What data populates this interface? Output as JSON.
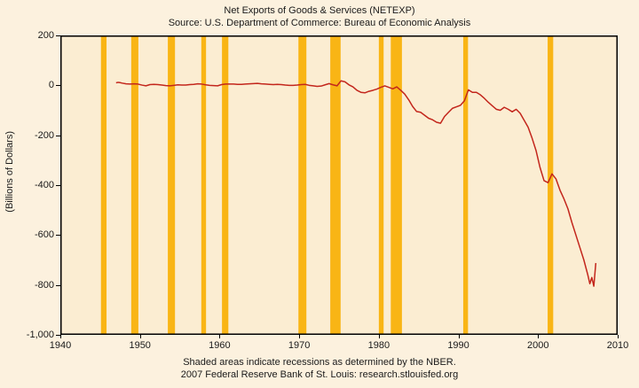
{
  "header": {
    "title": "Net Exports of Goods & Services (NETEXP)",
    "subtitle": "Source: U.S. Department of Commerce: Bureau of Economic Analysis"
  },
  "footer": {
    "line1": "Shaded areas indicate recessions as determined by the NBER.",
    "line2": "2007 Federal Reserve Bank of St. Louis: research.stlouisfed.org"
  },
  "colors": {
    "background": "#FCF1DE",
    "plot_background": "#FBEDD2",
    "recession_band": "#F9B515",
    "data_line": "#C3261C",
    "plot_border": "#000000",
    "text": "#1A1A1A"
  },
  "chart_data": {
    "type": "line",
    "title": "Net Exports of Goods & Services (NETEXP)",
    "subtitle": "Source: U.S. Department of Commerce: Bureau of Economic Analysis",
    "xlabel": "",
    "ylabel": "(Billions of Dollars)",
    "xlim": [
      1940,
      2010
    ],
    "ylim": [
      -1000,
      200
    ],
    "grid": false,
    "legend": "none",
    "x_tick_values": [
      1940,
      1950,
      1960,
      1970,
      1980,
      1990,
      2000,
      2010
    ],
    "x_tick_labels": [
      "1940",
      "1950",
      "1960",
      "1970",
      "1980",
      "1990",
      "2000",
      "2010"
    ],
    "y_tick_values": [
      200,
      0,
      -200,
      -400,
      -600,
      -800,
      -1000
    ],
    "y_tick_labels": [
      "200",
      "0",
      "-200",
      "-400",
      "-600",
      "-800",
      "-1,000"
    ],
    "recession_bands": [
      [
        1945.1,
        1945.8
      ],
      [
        1948.9,
        1949.8
      ],
      [
        1953.5,
        1954.4
      ],
      [
        1957.7,
        1958.3
      ],
      [
        1960.3,
        1961.1
      ],
      [
        1969.9,
        1970.9
      ],
      [
        1973.9,
        1975.2
      ],
      [
        1980.0,
        1980.6
      ],
      [
        1981.5,
        1982.9
      ],
      [
        1990.6,
        1991.2
      ],
      [
        2001.2,
        2001.9
      ]
    ],
    "series": [
      {
        "name": "NETEXP",
        "points": [
          [
            1947.0,
            10
          ],
          [
            1947.25,
            12
          ],
          [
            1947.5,
            11
          ],
          [
            1947.75,
            9
          ],
          [
            1948.25,
            6
          ],
          [
            1948.75,
            5
          ],
          [
            1949.25,
            6
          ],
          [
            1949.75,
            5
          ],
          [
            1950.25,
            1
          ],
          [
            1950.75,
            -2
          ],
          [
            1951.25,
            3
          ],
          [
            1951.75,
            4
          ],
          [
            1952.25,
            3
          ],
          [
            1952.75,
            1
          ],
          [
            1953.25,
            -1
          ],
          [
            1953.75,
            -2
          ],
          [
            1954.25,
            0
          ],
          [
            1954.75,
            2
          ],
          [
            1955.25,
            1
          ],
          [
            1955.75,
            1
          ],
          [
            1956.25,
            3
          ],
          [
            1956.75,
            4
          ],
          [
            1957.25,
            6
          ],
          [
            1957.75,
            5
          ],
          [
            1958.25,
            2
          ],
          [
            1958.75,
            0
          ],
          [
            1959.25,
            -1
          ],
          [
            1959.75,
            -2
          ],
          [
            1960.25,
            3
          ],
          [
            1960.75,
            5
          ],
          [
            1961.25,
            5
          ],
          [
            1961.75,
            5
          ],
          [
            1962.25,
            4
          ],
          [
            1962.75,
            4
          ],
          [
            1963.25,
            5
          ],
          [
            1963.75,
            6
          ],
          [
            1964.25,
            7
          ],
          [
            1964.75,
            8
          ],
          [
            1965.25,
            6
          ],
          [
            1965.75,
            5
          ],
          [
            1966.25,
            4
          ],
          [
            1966.75,
            3
          ],
          [
            1967.25,
            4
          ],
          [
            1967.75,
            3
          ],
          [
            1968.25,
            1
          ],
          [
            1968.75,
            0
          ],
          [
            1969.25,
            0
          ],
          [
            1969.75,
            1
          ],
          [
            1970.25,
            3
          ],
          [
            1970.75,
            4
          ],
          [
            1971.25,
            0
          ],
          [
            1971.75,
            -2
          ],
          [
            1972.25,
            -4
          ],
          [
            1972.75,
            -3
          ],
          [
            1973.25,
            2
          ],
          [
            1973.75,
            7
          ],
          [
            1974.25,
            2
          ],
          [
            1974.75,
            -2
          ],
          [
            1975.25,
            18
          ],
          [
            1975.75,
            14
          ],
          [
            1976.25,
            2
          ],
          [
            1976.75,
            -6
          ],
          [
            1977.25,
            -20
          ],
          [
            1977.75,
            -28
          ],
          [
            1978.25,
            -30
          ],
          [
            1978.75,
            -24
          ],
          [
            1979.25,
            -20
          ],
          [
            1979.75,
            -15
          ],
          [
            1980.25,
            -8
          ],
          [
            1980.75,
            -2
          ],
          [
            1981.25,
            -8
          ],
          [
            1981.75,
            -14
          ],
          [
            1982.25,
            -6
          ],
          [
            1982.75,
            -20
          ],
          [
            1983.25,
            -35
          ],
          [
            1983.75,
            -58
          ],
          [
            1984.25,
            -85
          ],
          [
            1984.75,
            -105
          ],
          [
            1985.25,
            -108
          ],
          [
            1985.75,
            -120
          ],
          [
            1986.25,
            -132
          ],
          [
            1986.75,
            -138
          ],
          [
            1987.25,
            -148
          ],
          [
            1987.75,
            -152
          ],
          [
            1988.25,
            -125
          ],
          [
            1988.75,
            -108
          ],
          [
            1989.25,
            -92
          ],
          [
            1989.75,
            -86
          ],
          [
            1990.25,
            -80
          ],
          [
            1990.75,
            -62
          ],
          [
            1991.25,
            -18
          ],
          [
            1991.75,
            -28
          ],
          [
            1992.25,
            -28
          ],
          [
            1992.75,
            -38
          ],
          [
            1993.25,
            -52
          ],
          [
            1993.75,
            -68
          ],
          [
            1994.25,
            -82
          ],
          [
            1994.75,
            -96
          ],
          [
            1995.25,
            -100
          ],
          [
            1995.75,
            -88
          ],
          [
            1996.25,
            -96
          ],
          [
            1996.75,
            -106
          ],
          [
            1997.25,
            -96
          ],
          [
            1997.75,
            -112
          ],
          [
            1998.25,
            -140
          ],
          [
            1998.75,
            -168
          ],
          [
            1999.25,
            -212
          ],
          [
            1999.75,
            -262
          ],
          [
            2000.25,
            -330
          ],
          [
            2000.75,
            -382
          ],
          [
            2001.25,
            -390
          ],
          [
            2001.75,
            -355
          ],
          [
            2002.25,
            -375
          ],
          [
            2002.75,
            -420
          ],
          [
            2003.25,
            -455
          ],
          [
            2003.75,
            -495
          ],
          [
            2004.25,
            -550
          ],
          [
            2004.75,
            -600
          ],
          [
            2005.25,
            -650
          ],
          [
            2005.75,
            -700
          ],
          [
            2006.25,
            -760
          ],
          [
            2006.5,
            -795
          ],
          [
            2006.75,
            -770
          ],
          [
            2007.0,
            -805
          ],
          [
            2007.25,
            -712
          ]
        ]
      }
    ]
  }
}
